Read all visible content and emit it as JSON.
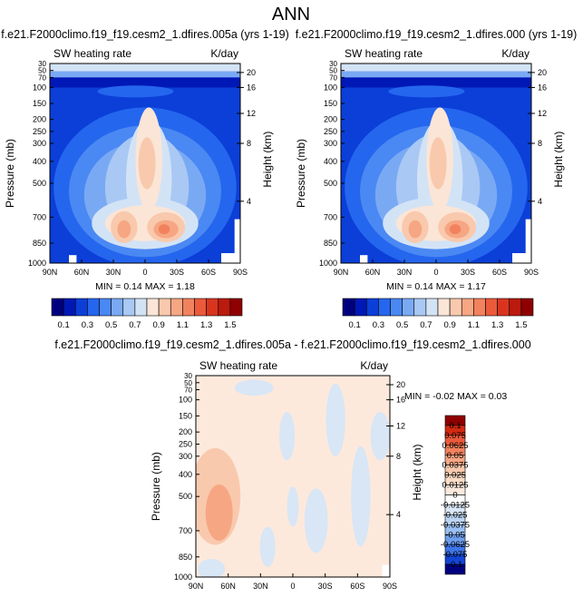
{
  "page_title": "ANN",
  "chart_data": [
    {
      "type": "heatmap",
      "title": "f.e21.F2000climo.f19_f19.cesm2_1.dfires.005a (yrs 1-19)",
      "left_label": "SW heating rate",
      "right_label": "K/day",
      "ylabel": "Pressure (mb)",
      "ylabel_right": "Height (km)",
      "x_ticks": [
        "90N",
        "60N",
        "30N",
        "0",
        "30S",
        "60S",
        "90S"
      ],
      "y_ticks": [
        "30",
        "50",
        "70",
        "100",
        "150",
        "200",
        "250",
        "300",
        "400",
        "500",
        "700",
        "850",
        "1000"
      ],
      "y_ticks_right": [
        "20",
        "16",
        "12",
        "8",
        "4"
      ],
      "min_max_label": "MIN =  0.14   MAX =  1.18",
      "min": 0.14,
      "max": 1.18
    },
    {
      "type": "heatmap",
      "title": "f.e21.F2000climo.f19_f19.cesm2_1.dfires.000 (yrs 1-19)",
      "left_label": "SW heating rate",
      "right_label": "K/day",
      "ylabel": "Pressure (mb)",
      "ylabel_right": "Height (km)",
      "x_ticks": [
        "90N",
        "60N",
        "30N",
        "0",
        "30S",
        "60S",
        "90S"
      ],
      "y_ticks": [
        "30",
        "50",
        "70",
        "100",
        "150",
        "200",
        "250",
        "300",
        "400",
        "500",
        "700",
        "850",
        "1000"
      ],
      "y_ticks_right": [
        "20",
        "16",
        "12",
        "8",
        "4"
      ],
      "min_max_label": "MIN =  0.14   MAX =  1.17",
      "min": 0.14,
      "max": 1.17
    },
    {
      "type": "heatmap",
      "title": "f.e21.F2000climo.f19_f19.cesm2_1.dfires.005a - f.e21.F2000climo.f19_f19.cesm2_1.dfires.000",
      "left_label": "SW heating rate",
      "right_label": "K/day",
      "ylabel": "Pressure (mb)",
      "ylabel_right": "Height (km)",
      "x_ticks": [
        "90N",
        "60N",
        "30N",
        "0",
        "30S",
        "60S",
        "90S"
      ],
      "y_ticks": [
        "30",
        "50",
        "70",
        "100",
        "150",
        "200",
        "250",
        "300",
        "400",
        "500",
        "700",
        "850",
        "1000"
      ],
      "y_ticks_right": [
        "20",
        "16",
        "12",
        "8",
        "4"
      ],
      "min_max_label": "MIN = -0.02   MAX =  0.03",
      "min": -0.02,
      "max": 0.03
    }
  ],
  "colorbar_top": {
    "labels": [
      "0.1",
      "0.3",
      "0.5",
      "0.7",
      "0.9",
      "1.1",
      "1.3",
      "1.5"
    ],
    "colors": [
      "#00007f",
      "#0018b5",
      "#0b3fd8",
      "#2566ee",
      "#4a88f3",
      "#7aa9f4",
      "#a9c8f4",
      "#d3e3f6",
      "#fbe5d6",
      "#f9c9ad",
      "#f6a683",
      "#f2825e",
      "#ea5a3b",
      "#d9351e",
      "#bb1a0e",
      "#8f0000"
    ]
  },
  "colorbar_diff": {
    "labels": [
      "0.1",
      "0.075",
      "0.0625",
      "0.05",
      "0.0375",
      "0.025",
      "0.0125",
      "0",
      "-0.0125",
      "-0.025",
      "-0.0375",
      "-0.05",
      "-0.0625",
      "-0.075",
      "-0.1"
    ],
    "colors": [
      "#8f0000",
      "#d42a12",
      "#ea5a3b",
      "#f2825e",
      "#f6a683",
      "#f9c9ad",
      "#fbdcc6",
      "#fde9dc",
      "#ffffff",
      "#d8e6f6",
      "#bcd4f4",
      "#9abff2",
      "#6f9fef",
      "#3f75e8",
      "#1445d6",
      "#00007f"
    ]
  },
  "heat_colors": {
    "d1": "#0018b5",
    "d2": "#0b3fd8",
    "d3": "#2566ee",
    "d4": "#4a88f3",
    "d5": "#7aa9f4",
    "d6": "#a9c8f4",
    "d7": "#d3e3f6",
    "p1": "#fbe5d6",
    "p2": "#f9c9ad",
    "p3": "#f6a683",
    "p4": "#f2825e",
    "p5": "#ea5a3b",
    "diff_pos": "#fde9dc",
    "diff_pos2": "#f9c9ad",
    "diff_pos3": "#f6a683",
    "diff_neg": "#d8e6f6"
  }
}
